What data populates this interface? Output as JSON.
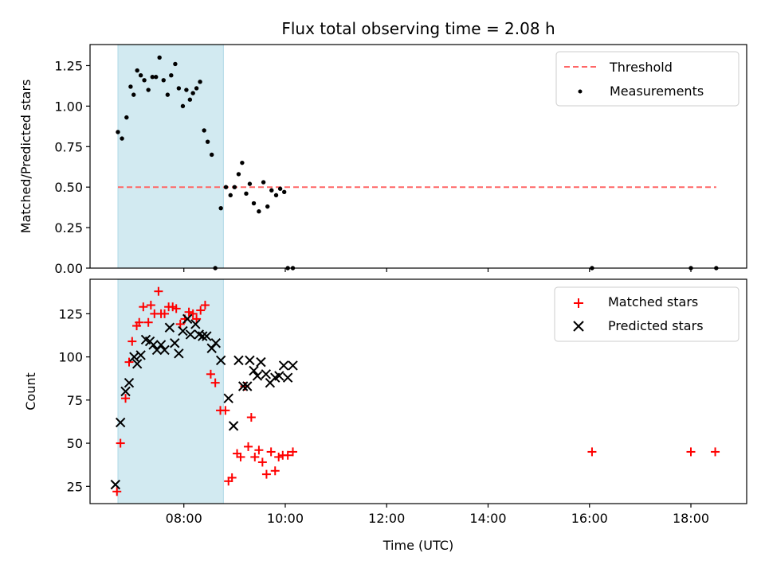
{
  "title": "Flux total observing time = 2.08 h",
  "chart_data": [
    {
      "type": "scatter",
      "ylabel": "Matched/Predicted stars",
      "xlabel": "",
      "xlim_hours": [
        6.15,
        19.1
      ],
      "ylim": [
        0,
        1.38
      ],
      "yticks": [
        0.0,
        0.25,
        0.5,
        0.75,
        1.0,
        1.25
      ],
      "ytick_labels": [
        "0.00",
        "0.25",
        "0.50",
        "0.75",
        "1.00",
        "1.25"
      ],
      "xticks_hours": [
        8,
        10,
        12,
        14,
        16,
        18
      ],
      "grid": false,
      "legend_position": "top-right",
      "shaded_interval_hours": [
        6.7,
        8.78
      ],
      "shade_color": "#add8e6",
      "threshold": {
        "name": "Threshold",
        "value": 0.5,
        "x_hours": [
          6.7,
          18.5
        ],
        "color": "#ff6666"
      },
      "series": [
        {
          "name": "Measurements",
          "color": "#000000",
          "x_hours": [
            6.7,
            6.78,
            6.87,
            6.95,
            7.01,
            7.08,
            7.15,
            7.22,
            7.3,
            7.38,
            7.45,
            7.52,
            7.6,
            7.68,
            7.75,
            7.83,
            7.9,
            7.98,
            8.05,
            8.12,
            8.18,
            8.25,
            8.32,
            8.4,
            8.47,
            8.55,
            8.62,
            8.73,
            8.83,
            8.92,
            9.0,
            9.08,
            9.15,
            9.23,
            9.3,
            9.38,
            9.48,
            9.57,
            9.65,
            9.73,
            9.82,
            9.9,
            9.98,
            10.05,
            10.15,
            16.05,
            18.0,
            18.5
          ],
          "values": [
            0.84,
            0.8,
            0.93,
            1.12,
            1.07,
            1.22,
            1.19,
            1.16,
            1.1,
            1.18,
            1.18,
            1.3,
            1.16,
            1.07,
            1.19,
            1.26,
            1.11,
            1.0,
            1.1,
            1.04,
            1.08,
            1.11,
            1.15,
            0.85,
            0.78,
            0.7,
            0.0,
            0.37,
            0.5,
            0.45,
            0.5,
            0.58,
            0.65,
            0.46,
            0.52,
            0.4,
            0.35,
            0.53,
            0.38,
            0.48,
            0.45,
            0.49,
            0.47,
            0.0,
            0.0,
            0.0,
            0.0,
            0.0
          ]
        }
      ]
    },
    {
      "type": "scatter",
      "ylabel": "Count",
      "xlabel": "Time (UTC)",
      "xlim_hours": [
        6.15,
        19.1
      ],
      "ylim": [
        15,
        145
      ],
      "yticks": [
        25,
        50,
        75,
        100,
        125
      ],
      "ytick_labels": [
        "25",
        "50",
        "75",
        "100",
        "125"
      ],
      "xticks_hours": [
        8,
        10,
        12,
        14,
        16,
        18
      ],
      "xtick_labels": [
        "08:00",
        "10:00",
        "12:00",
        "14:00",
        "16:00",
        "18:00"
      ],
      "grid": false,
      "legend_position": "top-right",
      "shaded_interval_hours": [
        6.7,
        8.78
      ],
      "series": [
        {
          "name": "Matched stars",
          "marker": "plus",
          "color": "#ff0000",
          "x_hours": [
            6.68,
            6.75,
            6.85,
            6.92,
            6.98,
            7.07,
            7.12,
            7.2,
            7.3,
            7.35,
            7.42,
            7.5,
            7.55,
            7.62,
            7.7,
            7.78,
            7.85,
            7.93,
            8.02,
            8.1,
            8.18,
            8.25,
            8.33,
            8.42,
            8.53,
            8.62,
            8.72,
            8.82,
            8.88,
            8.95,
            9.05,
            9.12,
            9.2,
            9.27,
            9.33,
            9.4,
            9.48,
            9.55,
            9.63,
            9.72,
            9.8,
            9.87,
            9.95,
            10.05,
            10.15,
            16.05,
            18.0,
            18.48
          ],
          "values": [
            22,
            50,
            76,
            97,
            109,
            118,
            120,
            129,
            120,
            130,
            125,
            138,
            125,
            125,
            129,
            129,
            128,
            119,
            122,
            126,
            125,
            122,
            127,
            130,
            90,
            85,
            69,
            69,
            28,
            30,
            44,
            42,
            83,
            48,
            65,
            42,
            46,
            39,
            32,
            45,
            34,
            42,
            43,
            43,
            45,
            45,
            45,
            45
          ]
        },
        {
          "name": "Predicted stars",
          "marker": "x",
          "color": "#000000",
          "x_hours": [
            6.65,
            6.75,
            6.85,
            6.92,
            7.02,
            7.08,
            7.15,
            7.25,
            7.33,
            7.4,
            7.47,
            7.55,
            7.62,
            7.72,
            7.82,
            7.9,
            7.98,
            8.07,
            8.13,
            8.23,
            8.3,
            8.37,
            8.45,
            8.55,
            8.63,
            8.73,
            8.88,
            8.98,
            9.08,
            9.17,
            9.25,
            9.3,
            9.38,
            9.45,
            9.52,
            9.62,
            9.7,
            9.8,
            9.88,
            9.97,
            10.05,
            10.15
          ],
          "values": [
            26,
            62,
            80,
            85,
            100,
            96,
            101,
            110,
            109,
            107,
            104,
            107,
            104,
            117,
            108,
            102,
            115,
            122,
            113,
            119,
            113,
            112,
            112,
            105,
            108,
            98,
            76,
            60,
            98,
            83,
            83,
            98,
            92,
            89,
            97,
            90,
            85,
            88,
            89,
            95,
            88,
            95
          ]
        }
      ]
    }
  ]
}
